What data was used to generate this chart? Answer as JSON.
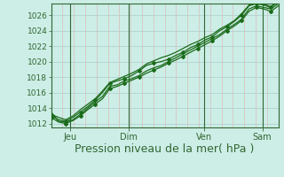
{
  "bg_color": "#cceee6",
  "grid_color_h": "#aacccc",
  "grid_color_v": "#ddbbbb",
  "line_color": "#1a6b1a",
  "tick_color": "#336633",
  "axis_color": "#336633",
  "xlabel": "Pression niveau de la mer( hPa )",
  "xlabel_fontsize": 9,
  "ylim": [
    1011.5,
    1027.5
  ],
  "xlim": [
    0,
    1
  ],
  "yticks": [
    1012,
    1014,
    1016,
    1018,
    1020,
    1022,
    1024,
    1026
  ],
  "xtick_positions": [
    0.085,
    0.34,
    0.675,
    0.93
  ],
  "xtick_labels": [
    "Jeu",
    "Dim",
    "Ven",
    "Sam"
  ],
  "vline_positions": [
    0.085,
    0.34,
    0.675,
    0.93
  ],
  "n_hgrid": 8,
  "n_vgrid": 20,
  "series": [
    [
      1013.0,
      1012.5,
      1012.3,
      1012.8,
      1013.5,
      1014.2,
      1015.0,
      1016.0,
      1017.2,
      1017.5,
      1017.8,
      1018.2,
      1018.8,
      1019.5,
      1019.8,
      1020.0,
      1020.3,
      1020.8,
      1021.2,
      1021.8,
      1022.2,
      1022.8,
      1023.2,
      1024.0,
      1024.5,
      1025.2,
      1026.0,
      1027.2,
      1027.5,
      1027.3,
      1027.0,
      1027.8
    ],
    [
      1013.5,
      1012.3,
      1012.2,
      1012.5,
      1013.2,
      1014.0,
      1014.8,
      1015.5,
      1016.8,
      1017.0,
      1017.5,
      1017.8,
      1018.2,
      1018.8,
      1019.2,
      1019.5,
      1020.0,
      1020.5,
      1021.0,
      1021.5,
      1022.0,
      1022.5,
      1023.0,
      1023.5,
      1024.2,
      1024.8,
      1025.5,
      1026.8,
      1027.2,
      1027.0,
      1026.8,
      1027.5
    ],
    [
      1012.8,
      1012.2,
      1012.0,
      1012.4,
      1013.0,
      1013.8,
      1014.5,
      1015.2,
      1016.5,
      1016.8,
      1017.2,
      1017.6,
      1018.0,
      1018.5,
      1018.9,
      1019.3,
      1019.8,
      1020.2,
      1020.7,
      1021.2,
      1021.7,
      1022.2,
      1022.7,
      1023.3,
      1024.0,
      1024.6,
      1025.3,
      1026.5,
      1027.0,
      1026.8,
      1026.5,
      1027.2
    ],
    [
      1013.2,
      1012.8,
      1012.5,
      1013.0,
      1013.8,
      1014.5,
      1015.2,
      1016.2,
      1017.3,
      1017.7,
      1018.1,
      1018.5,
      1019.0,
      1019.7,
      1020.1,
      1020.5,
      1020.8,
      1021.2,
      1021.7,
      1022.2,
      1022.6,
      1023.1,
      1023.5,
      1024.2,
      1024.7,
      1025.3,
      1026.2,
      1027.3,
      1027.6,
      1027.4,
      1027.1,
      1027.9
    ]
  ],
  "marker_series": [
    0,
    2
  ],
  "marker_style": "D",
  "marker_size": 2.0
}
